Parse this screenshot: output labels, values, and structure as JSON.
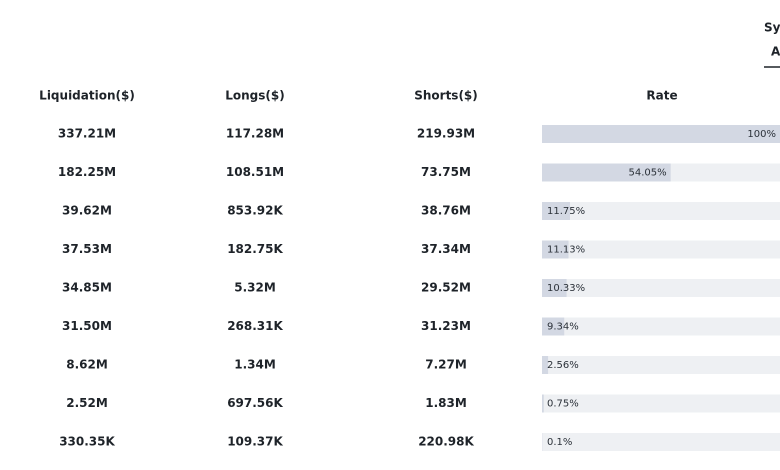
{
  "tabs": {
    "symbol": "Sy",
    "active": "A"
  },
  "table": {
    "headers": [
      "Liquidation($)",
      "Longs($)",
      "Shorts($)",
      "Rate"
    ],
    "rows": [
      {
        "liquidation": "337.21M",
        "longs": "117.28M",
        "shorts": "219.93M",
        "rate": {
          "value": 100,
          "label": "100%"
        }
      },
      {
        "liquidation": "182.25M",
        "longs": "108.51M",
        "shorts": "73.75M",
        "rate": {
          "value": 54.05,
          "label": "54.05%"
        }
      },
      {
        "liquidation": "39.62M",
        "longs": "853.92K",
        "shorts": "38.76M",
        "rate": {
          "value": 11.75,
          "label": "11.75%"
        }
      },
      {
        "liquidation": "37.53M",
        "longs": "182.75K",
        "shorts": "37.34M",
        "rate": {
          "value": 11.13,
          "label": "11.13%"
        }
      },
      {
        "liquidation": "34.85M",
        "longs": "5.32M",
        "shorts": "29.52M",
        "rate": {
          "value": 10.33,
          "label": "10.33%"
        }
      },
      {
        "liquidation": "31.50M",
        "longs": "268.31K",
        "shorts": "31.23M",
        "rate": {
          "value": 9.34,
          "label": "9.34%"
        }
      },
      {
        "liquidation": "8.62M",
        "longs": "1.34M",
        "shorts": "7.27M",
        "rate": {
          "value": 2.56,
          "label": "2.56%"
        }
      },
      {
        "liquidation": "2.52M",
        "longs": "697.56K",
        "shorts": "1.83M",
        "rate": {
          "value": 0.75,
          "label": "0.75%"
        }
      },
      {
        "liquidation": "330.35K",
        "longs": "109.37K",
        "shorts": "220.98K",
        "rate": {
          "value": 0.1,
          "label": "0.1%"
        }
      }
    ]
  }
}
